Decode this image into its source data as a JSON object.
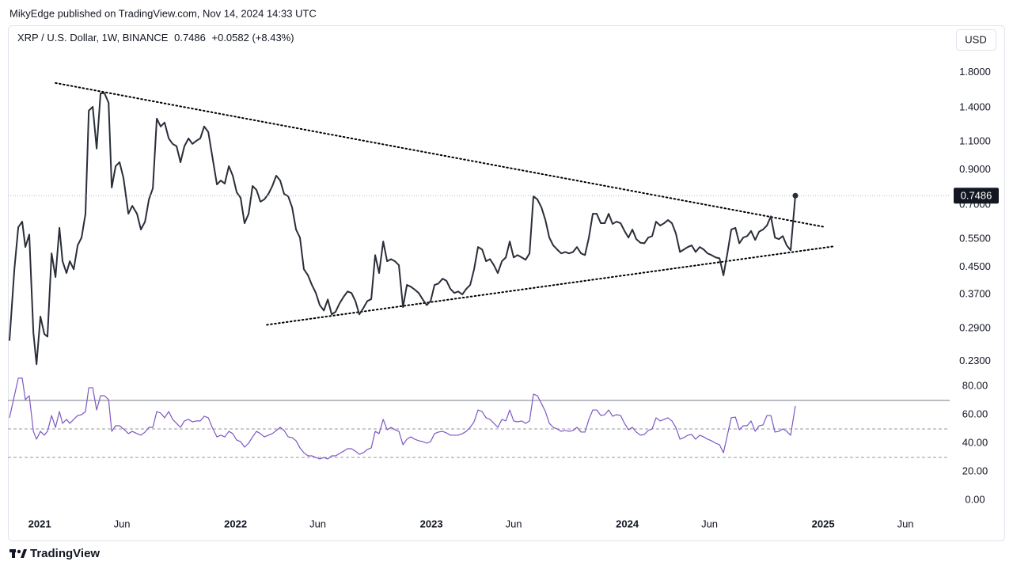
{
  "publisher": "MikyEdge published on TradingView.com, Nov 14, 2024 14:33 UTC",
  "currency": "USD",
  "brand": "TradingView",
  "chart_data": [
    {
      "type": "line",
      "title": "XRP / U.S. Dollar, 1W, BINANCE",
      "change_label": "+0.0582 (+8.43%)",
      "x": [
        2020.846,
        2020.871,
        2020.891,
        2020.911,
        2020.927,
        2020.947,
        2020.968,
        2020.984,
        2021.004,
        2021.024,
        2021.04,
        2021.061,
        2021.081,
        2021.101,
        2021.117,
        2021.137,
        2021.154,
        2021.174,
        2021.194,
        2021.214,
        2021.234,
        2021.251,
        2021.271,
        2021.291,
        2021.311,
        2021.331,
        2021.352,
        2021.368,
        2021.388,
        2021.408,
        2021.428,
        2021.453,
        2021.473,
        2021.497,
        2021.517,
        2021.538,
        2021.558,
        2021.578,
        2021.598,
        2021.618,
        2021.638,
        2021.659,
        2021.679,
        2021.699,
        2021.719,
        2021.739,
        2021.76,
        2021.78,
        2021.8,
        2021.82,
        2021.84,
        2021.861,
        2021.881,
        2021.905,
        2021.925,
        2021.945,
        2021.966,
        2021.986,
        2022.006,
        2022.026,
        2022.046,
        2022.067,
        2022.087,
        2022.107,
        2022.127,
        2022.147,
        2022.168,
        2022.188,
        2022.208,
        2022.228,
        2022.248,
        2022.269,
        2022.289,
        2022.309,
        2022.329,
        2022.349,
        2022.37,
        2022.39,
        2022.41,
        2022.43,
        2022.451,
        2022.471,
        2022.491,
        2022.511,
        2022.531,
        2022.552,
        2022.572,
        2022.592,
        2022.612,
        2022.632,
        2022.653,
        2022.673,
        2022.693,
        2022.713,
        2022.733,
        2022.754,
        2022.774,
        2022.794,
        2022.814,
        2022.834,
        2022.855,
        2022.875,
        2022.895,
        2022.915,
        2022.935,
        2022.956,
        2022.976,
        2022.996,
        2023.016,
        2023.036,
        2023.057,
        2023.077,
        2023.097,
        2023.117,
        2023.137,
        2023.158,
        2023.178,
        2023.198,
        2023.218,
        2023.238,
        2023.259,
        2023.279,
        2023.299,
        2023.319,
        2023.339,
        2023.36,
        2023.38,
        2023.4,
        2023.42,
        2023.44,
        2023.461,
        2023.481,
        2023.501,
        2023.521,
        2023.541,
        2023.562,
        2023.582,
        2023.602,
        2023.622,
        2023.642,
        2023.663,
        2023.683,
        2023.703,
        2023.723,
        2023.743,
        2023.764,
        2023.784,
        2023.804,
        2023.824,
        2023.844,
        2023.865,
        2023.885,
        2023.905,
        2023.925,
        2023.945,
        2023.966,
        2023.986,
        2024.006,
        2024.026,
        2024.046,
        2024.067,
        2024.087,
        2024.107,
        2024.127,
        2024.147,
        2024.168,
        2024.188,
        2024.208,
        2024.228,
        2024.248,
        2024.269,
        2024.289,
        2024.309,
        2024.329,
        2024.349,
        2024.37,
        2024.39,
        2024.41,
        2024.43,
        2024.451,
        2024.471,
        2024.491,
        2024.511,
        2024.531,
        2024.552,
        2024.572,
        2024.592,
        2024.612,
        2024.632,
        2024.653,
        2024.673,
        2024.693,
        2024.713,
        2024.733,
        2024.754,
        2024.774,
        2024.794,
        2024.814,
        2024.834,
        2024.858
      ],
      "series": [
        {
          "color": "#2a2e39",
          "values": [
            0.266,
            0.443,
            0.598,
            0.622,
            0.519,
            0.567,
            0.282,
            0.225,
            0.316,
            0.279,
            0.274,
            0.496,
            0.419,
            0.595,
            0.469,
            0.431,
            0.469,
            0.443,
            0.525,
            0.555,
            0.658,
            1.372,
            1.411,
            1.047,
            1.554,
            1.554,
            1.452,
            0.793,
            0.924,
            0.95,
            0.849,
            0.658,
            0.696,
            0.658,
            0.588,
            0.622,
            0.729,
            0.789,
            1.297,
            1.226,
            1.261,
            1.126,
            1.083,
            1.065,
            0.95,
            1.065,
            1.126,
            1.083,
            1.107,
            1.126,
            1.226,
            1.178,
            0.994,
            0.811,
            0.834,
            0.816,
            0.924,
            0.863,
            0.767,
            0.737,
            0.615,
            0.658,
            0.802,
            0.78,
            0.717,
            0.729,
            0.758,
            0.802,
            0.863,
            0.834,
            0.758,
            0.745,
            0.688,
            0.588,
            0.555,
            0.443,
            0.424,
            0.396,
            0.374,
            0.343,
            0.33,
            0.357,
            0.321,
            0.327,
            0.347,
            0.364,
            0.378,
            0.374,
            0.353,
            0.321,
            0.336,
            0.353,
            0.358,
            0.49,
            0.431,
            0.54,
            0.469,
            0.476,
            0.469,
            0.456,
            0.338,
            0.396,
            0.391,
            0.383,
            0.374,
            0.357,
            0.343,
            0.353,
            0.396,
            0.4,
            0.414,
            0.408,
            0.385,
            0.374,
            0.378,
            0.37,
            0.385,
            0.396,
            0.443,
            0.519,
            0.51,
            0.469,
            0.476,
            0.456,
            0.431,
            0.469,
            0.482,
            0.54,
            0.482,
            0.49,
            0.482,
            0.474,
            0.496,
            0.745,
            0.729,
            0.688,
            0.629,
            0.555,
            0.525,
            0.51,
            0.496,
            0.501,
            0.496,
            0.501,
            0.519,
            0.496,
            0.49,
            0.555,
            0.658,
            0.658,
            0.615,
            0.615,
            0.658,
            0.612,
            0.622,
            0.615,
            0.582,
            0.555,
            0.588,
            0.549,
            0.535,
            0.533,
            0.555,
            0.561,
            0.622,
            0.605,
            0.615,
            0.629,
            0.615,
            0.572,
            0.501,
            0.51,
            0.519,
            0.525,
            0.501,
            0.519,
            0.51,
            0.496,
            0.49,
            0.482,
            0.479,
            0.424,
            0.496,
            0.588,
            0.595,
            0.533,
            0.555,
            0.561,
            0.582,
            0.546,
            0.579,
            0.588,
            0.605,
            0.646,
            0.555,
            0.549,
            0.561,
            0.525,
            0.507,
            0.7486
          ]
        }
      ],
      "xlim": [
        2020.838,
        2025.646
      ],
      "ylim": [
        0.207,
        2.48
      ],
      "log_scale": true,
      "grid": false,
      "yticks": [
        {
          "value": 1.8,
          "label": "1.8000"
        },
        {
          "value": 1.4,
          "label": "1.4000"
        },
        {
          "value": 1.1,
          "label": "1.1000"
        },
        {
          "value": 0.9,
          "label": "0.9000"
        },
        {
          "value": 0.7,
          "label": "0.7000"
        },
        {
          "value": 0.55,
          "label": "0.5500"
        },
        {
          "value": 0.45,
          "label": "0.4500"
        },
        {
          "value": 0.37,
          "label": "0.3700"
        },
        {
          "value": 0.29,
          "label": "0.2900"
        },
        {
          "value": 0.23,
          "label": "0.2300"
        }
      ],
      "trendlines": [
        {
          "color": "#000000",
          "x": [
            2021.081,
            2025.012
          ],
          "y": [
            1.672,
            0.598
          ]
        },
        {
          "color": "#000000",
          "x": [
            2022.16,
            2025.06
          ],
          "y": [
            0.298,
            0.522
          ]
        }
      ],
      "last_value_line": true
    },
    {
      "type": "line",
      "x": [
        2020.846,
        2020.871,
        2020.891,
        2020.911,
        2020.927,
        2020.947,
        2020.968,
        2020.984,
        2021.004,
        2021.024,
        2021.04,
        2021.061,
        2021.081,
        2021.101,
        2021.117,
        2021.137,
        2021.154,
        2021.174,
        2021.194,
        2021.214,
        2021.234,
        2021.251,
        2021.271,
        2021.291,
        2021.311,
        2021.331,
        2021.352,
        2021.368,
        2021.388,
        2021.408,
        2021.428,
        2021.453,
        2021.473,
        2021.497,
        2021.517,
        2021.538,
        2021.558,
        2021.578,
        2021.598,
        2021.618,
        2021.638,
        2021.659,
        2021.679,
        2021.699,
        2021.719,
        2021.739,
        2021.76,
        2021.78,
        2021.8,
        2021.82,
        2021.84,
        2021.861,
        2021.881,
        2021.905,
        2021.925,
        2021.945,
        2021.966,
        2021.986,
        2022.006,
        2022.026,
        2022.046,
        2022.067,
        2022.087,
        2022.107,
        2022.127,
        2022.147,
        2022.168,
        2022.188,
        2022.208,
        2022.228,
        2022.248,
        2022.269,
        2022.289,
        2022.309,
        2022.329,
        2022.349,
        2022.37,
        2022.39,
        2022.41,
        2022.43,
        2022.451,
        2022.471,
        2022.491,
        2022.511,
        2022.531,
        2022.552,
        2022.572,
        2022.592,
        2022.612,
        2022.632,
        2022.653,
        2022.673,
        2022.693,
        2022.713,
        2022.733,
        2022.754,
        2022.774,
        2022.794,
        2022.814,
        2022.834,
        2022.855,
        2022.875,
        2022.895,
        2022.915,
        2022.935,
        2022.956,
        2022.976,
        2022.996,
        2023.016,
        2023.036,
        2023.057,
        2023.077,
        2023.097,
        2023.117,
        2023.137,
        2023.158,
        2023.178,
        2023.198,
        2023.218,
        2023.238,
        2023.259,
        2023.279,
        2023.299,
        2023.319,
        2023.339,
        2023.36,
        2023.38,
        2023.4,
        2023.42,
        2023.44,
        2023.461,
        2023.481,
        2023.501,
        2023.521,
        2023.541,
        2023.562,
        2023.582,
        2023.602,
        2023.622,
        2023.642,
        2023.663,
        2023.683,
        2023.703,
        2023.723,
        2023.743,
        2023.764,
        2023.784,
        2023.804,
        2023.824,
        2023.844,
        2023.865,
        2023.885,
        2023.905,
        2023.925,
        2023.945,
        2023.966,
        2023.986,
        2024.006,
        2024.026,
        2024.046,
        2024.067,
        2024.087,
        2024.107,
        2024.127,
        2024.147,
        2024.168,
        2024.188,
        2024.208,
        2024.228,
        2024.248,
        2024.269,
        2024.289,
        2024.309,
        2024.329,
        2024.349,
        2024.37,
        2024.39,
        2024.41,
        2024.43,
        2024.451,
        2024.471,
        2024.491,
        2024.511,
        2024.531,
        2024.552,
        2024.572,
        2024.592,
        2024.612,
        2024.632,
        2024.653,
        2024.673,
        2024.693,
        2024.713,
        2024.733,
        2024.754,
        2024.774,
        2024.794,
        2024.814,
        2024.834,
        2024.858
      ],
      "series": [
        {
          "color": "#7e57c2",
          "values": [
            57.8,
            73.3,
            85.6,
            85.6,
            70.6,
            73.3,
            48.3,
            42.8,
            48.3,
            45.6,
            48.3,
            59.4,
            51.1,
            62.2,
            53.9,
            56.7,
            53.9,
            56.7,
            59.4,
            60.0,
            62.2,
            78.9,
            78.9,
            63.3,
            73.3,
            73.3,
            70.6,
            48.3,
            52.2,
            52.2,
            50.0,
            46.7,
            48.3,
            46.7,
            45.6,
            47.8,
            51.1,
            51.1,
            62.2,
            61.1,
            57.8,
            62.2,
            56.7,
            53.9,
            51.1,
            55.6,
            56.7,
            55.0,
            55.6,
            55.6,
            58.9,
            57.8,
            51.1,
            44.4,
            45.6,
            44.4,
            48.3,
            46.7,
            42.2,
            41.1,
            37.2,
            40.0,
            44.4,
            48.3,
            46.7,
            44.4,
            45.6,
            46.7,
            48.9,
            51.1,
            48.9,
            44.4,
            43.9,
            41.7,
            36.7,
            33.3,
            31.1,
            31.1,
            30.0,
            28.9,
            30.0,
            28.9,
            31.1,
            31.1,
            32.8,
            34.4,
            36.1,
            36.1,
            34.4,
            32.2,
            33.3,
            35.6,
            36.7,
            48.3,
            46.7,
            56.7,
            49.4,
            51.1,
            49.4,
            48.3,
            38.9,
            42.8,
            44.4,
            42.8,
            41.7,
            41.1,
            40.0,
            41.1,
            46.7,
            47.8,
            48.3,
            47.2,
            45.6,
            45.6,
            45.6,
            46.7,
            48.3,
            51.1,
            55.0,
            63.3,
            62.2,
            57.8,
            56.7,
            53.9,
            51.1,
            56.7,
            55.6,
            63.3,
            55.6,
            55.0,
            55.6,
            53.9,
            55.6,
            74.4,
            73.3,
            67.8,
            62.2,
            53.9,
            51.1,
            50.0,
            48.3,
            48.9,
            48.3,
            48.9,
            51.1,
            47.8,
            47.8,
            56.7,
            63.3,
            63.3,
            59.4,
            60.0,
            63.3,
            58.9,
            60.0,
            59.4,
            53.9,
            49.4,
            51.1,
            47.8,
            45.6,
            46.1,
            48.9,
            50.0,
            57.8,
            55.6,
            56.7,
            57.8,
            55.6,
            51.1,
            42.8,
            43.9,
            45.6,
            46.1,
            42.8,
            45.6,
            44.4,
            42.8,
            41.7,
            40.0,
            38.9,
            33.3,
            45.6,
            57.8,
            58.3,
            49.4,
            52.2,
            52.2,
            55.6,
            48.3,
            52.2,
            52.8,
            59.4,
            59.4,
            47.8,
            48.3,
            50.0,
            48.3,
            45.6,
            66.1
          ]
        }
      ],
      "xlim": [
        2020.838,
        2025.646
      ],
      "ylim": [
        -7.2,
        87.2
      ],
      "grid": false,
      "yticks": [
        {
          "value": 80,
          "label": "80.00"
        },
        {
          "value": 60,
          "label": "60.00"
        },
        {
          "value": 40,
          "label": "40.00"
        },
        {
          "value": 20,
          "label": "20.00"
        },
        {
          "value": 0,
          "label": "0.00"
        }
      ],
      "levels": [
        70,
        50,
        30
      ],
      "level_styles": [
        "solid",
        "dashed",
        "dashed"
      ],
      "xticks": [
        2021,
        {
          "value": 2021.42,
          "label": "Jun"
        },
        2022,
        {
          "value": 2022.42,
          "label": "Jun"
        },
        2023,
        {
          "value": 2023.42,
          "label": "Jun"
        },
        2024,
        {
          "value": 2024.42,
          "label": "Jun"
        },
        2025,
        {
          "value": 2025.42,
          "label": "Jun"
        }
      ]
    }
  ]
}
